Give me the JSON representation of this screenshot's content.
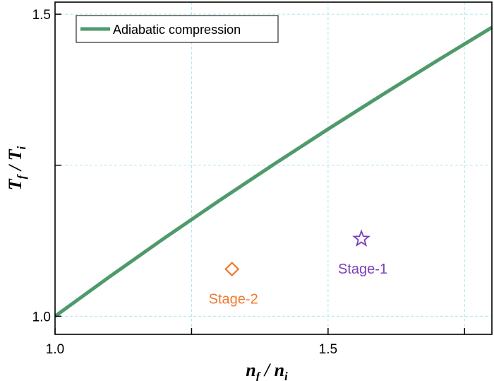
{
  "chart_data": {
    "type": "line",
    "x_axis": {
      "range": [
        1.0,
        1.8
      ],
      "ticks": [
        1.0,
        1.25,
        1.5,
        1.75
      ],
      "tick_labels": [
        "1.0",
        "",
        "1.5",
        ""
      ]
    },
    "y_axis": {
      "range": [
        0.97,
        1.52
      ],
      "ticks": [
        1.0,
        1.25,
        1.5
      ],
      "tick_labels": [
        "1.0",
        "",
        "1.5"
      ]
    },
    "xlabel": {
      "main": "n",
      "sub1": "f",
      "sep": " / ",
      "main2": "n",
      "sub2": "i"
    },
    "ylabel": {
      "main": "T",
      "sub1": "f",
      "sep": " / ",
      "main2": "T",
      "sub2": "i"
    },
    "grid": true,
    "legend": {
      "placement": "top-left",
      "entries": [
        "Adiabatic compression"
      ]
    },
    "series": [
      {
        "name": "Adiabatic compression",
        "kind": "line",
        "color": "#4e9a6b",
        "x": [
          1.0,
          1.1,
          1.2,
          1.3,
          1.4,
          1.5,
          1.6,
          1.7,
          1.8
        ],
        "y": [
          1.0,
          1.0655,
          1.1291,
          1.1909,
          1.2511,
          1.3098,
          1.3671,
          1.4232,
          1.4781
        ]
      }
    ],
    "points": [
      {
        "label": "Stage-1",
        "x": 1.561,
        "y": 1.128,
        "marker": "star",
        "color": "#7b3fb8"
      },
      {
        "label": "Stage-2",
        "x": 1.324,
        "y": 1.078,
        "marker": "diamond",
        "color": "#ef7a2f"
      }
    ]
  }
}
